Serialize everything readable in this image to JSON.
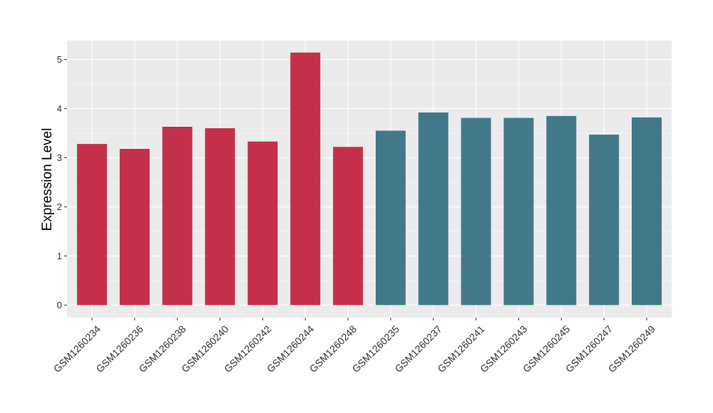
{
  "chart_data": {
    "type": "bar",
    "title": "",
    "xlabel": "",
    "ylabel": "Expression Level",
    "ylim": [
      0,
      5.3
    ],
    "yticks": [
      0,
      1,
      2,
      3,
      4,
      5
    ],
    "grid": true,
    "legend": "none",
    "categories": [
      "GSM1260234",
      "GSM1260236",
      "GSM1260238",
      "GSM1260240",
      "GSM1260242",
      "GSM1260244",
      "GSM1260248",
      "GSM1260235",
      "GSM1260237",
      "GSM1260241",
      "GSM1260243",
      "GSM1260245",
      "GSM1260247",
      "GSM1260249"
    ],
    "values": [
      3.28,
      3.18,
      3.63,
      3.6,
      3.33,
      5.14,
      3.22,
      3.55,
      3.92,
      3.81,
      3.81,
      3.85,
      3.47,
      3.82
    ],
    "group_colors": [
      "#C4304A",
      "#C4304A",
      "#C4304A",
      "#C4304A",
      "#C4304A",
      "#C4304A",
      "#C4304A",
      "#41798B",
      "#41798B",
      "#41798B",
      "#41798B",
      "#41798B",
      "#41798B",
      "#41798B"
    ],
    "panel_background": "#EBEBEB",
    "grid_color": "#FFFFFF"
  }
}
